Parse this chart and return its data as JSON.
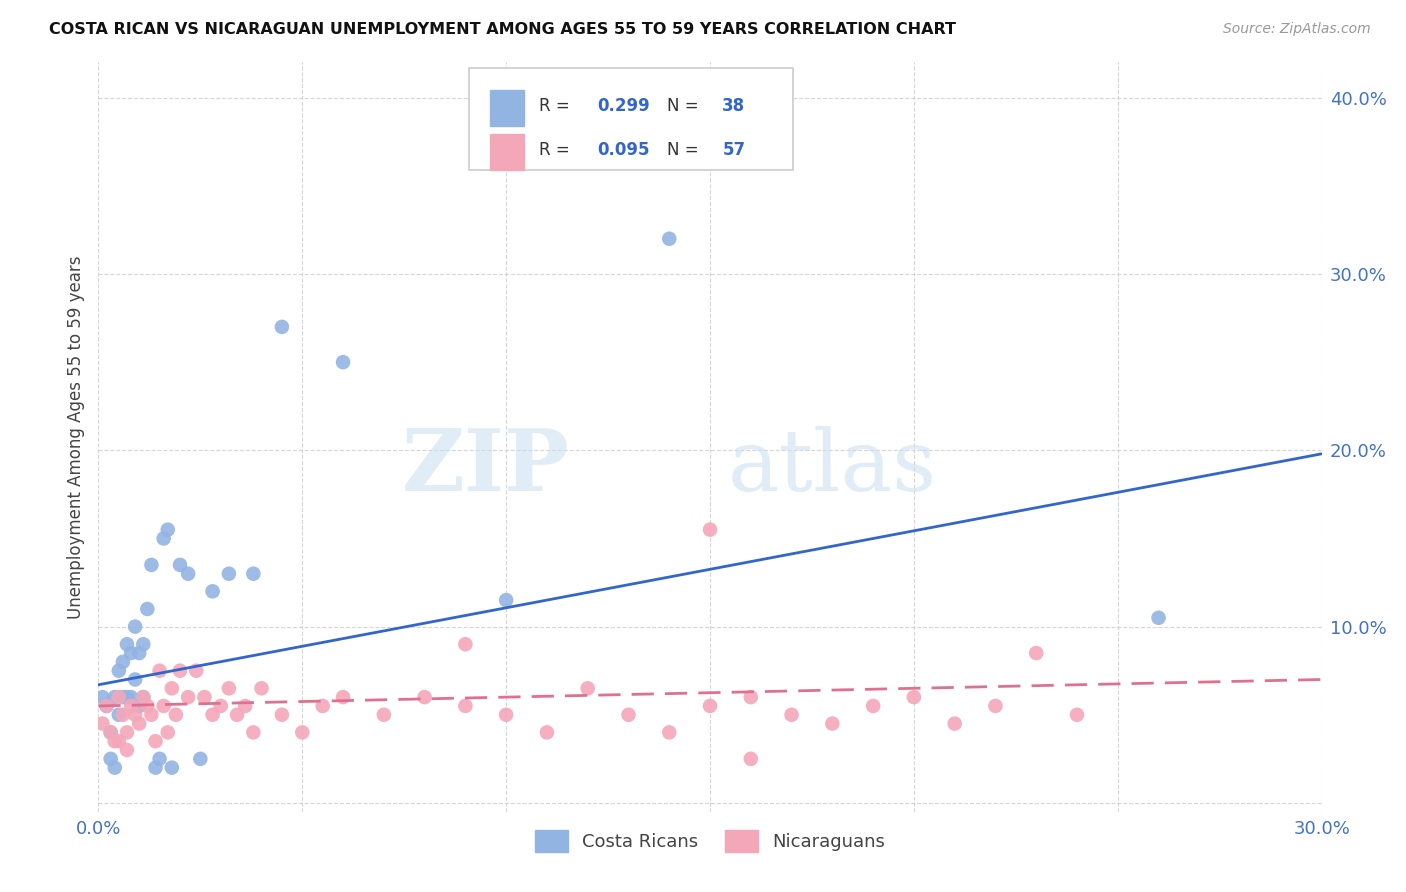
{
  "title": "COSTA RICAN VS NICARAGUAN UNEMPLOYMENT AMONG AGES 55 TO 59 YEARS CORRELATION CHART",
  "source": "Source: ZipAtlas.com",
  "ylabel": "Unemployment Among Ages 55 to 59 years",
  "xlim": [
    0.0,
    0.3
  ],
  "ylim": [
    -0.005,
    0.42
  ],
  "xtick_labels": [
    "0.0%",
    "",
    "",
    "",
    "",
    "",
    "30.0%"
  ],
  "ytick_labels": [
    "",
    "10.0%",
    "20.0%",
    "30.0%",
    "40.0%"
  ],
  "watermark_zip": "ZIP",
  "watermark_atlas": "atlas",
  "costa_rican_color": "#92b4e3",
  "nicaraguan_color": "#f4a7b9",
  "regression_blue": "#3366cc",
  "regression_pink": "#e07090",
  "regression_blue_x0": 0.0,
  "regression_blue_y0": 0.067,
  "regression_blue_x1": 0.3,
  "regression_blue_y1": 0.198,
  "regression_pink_x0": 0.0,
  "regression_pink_y0": 0.055,
  "regression_pink_x1": 0.3,
  "regression_pink_y1": 0.07,
  "costa_rican_x": [
    0.001,
    0.002,
    0.003,
    0.003,
    0.004,
    0.004,
    0.005,
    0.005,
    0.006,
    0.006,
    0.007,
    0.007,
    0.008,
    0.008,
    0.009,
    0.009,
    0.01,
    0.01,
    0.011,
    0.011,
    0.012,
    0.013,
    0.014,
    0.015,
    0.016,
    0.017,
    0.018,
    0.02,
    0.022,
    0.025,
    0.028,
    0.032,
    0.038,
    0.045,
    0.06,
    0.1,
    0.14,
    0.26
  ],
  "costa_rican_y": [
    0.06,
    0.055,
    0.04,
    0.025,
    0.06,
    0.02,
    0.075,
    0.05,
    0.08,
    0.06,
    0.09,
    0.06,
    0.085,
    0.06,
    0.1,
    0.07,
    0.085,
    0.055,
    0.09,
    0.06,
    0.11,
    0.135,
    0.02,
    0.025,
    0.15,
    0.155,
    0.02,
    0.135,
    0.13,
    0.025,
    0.12,
    0.13,
    0.13,
    0.27,
    0.25,
    0.115,
    0.32,
    0.105
  ],
  "nicaraguan_x": [
    0.001,
    0.002,
    0.003,
    0.004,
    0.005,
    0.005,
    0.006,
    0.007,
    0.007,
    0.008,
    0.009,
    0.01,
    0.011,
    0.012,
    0.013,
    0.014,
    0.015,
    0.016,
    0.017,
    0.018,
    0.019,
    0.02,
    0.022,
    0.024,
    0.026,
    0.028,
    0.03,
    0.032,
    0.034,
    0.036,
    0.038,
    0.04,
    0.045,
    0.05,
    0.055,
    0.06,
    0.07,
    0.08,
    0.09,
    0.1,
    0.11,
    0.12,
    0.13,
    0.14,
    0.15,
    0.16,
    0.17,
    0.18,
    0.19,
    0.2,
    0.21,
    0.22,
    0.23,
    0.24,
    0.15,
    0.16,
    0.09
  ],
  "nicaraguan_y": [
    0.045,
    0.055,
    0.04,
    0.035,
    0.06,
    0.035,
    0.05,
    0.04,
    0.03,
    0.055,
    0.05,
    0.045,
    0.06,
    0.055,
    0.05,
    0.035,
    0.075,
    0.055,
    0.04,
    0.065,
    0.05,
    0.075,
    0.06,
    0.075,
    0.06,
    0.05,
    0.055,
    0.065,
    0.05,
    0.055,
    0.04,
    0.065,
    0.05,
    0.04,
    0.055,
    0.06,
    0.05,
    0.06,
    0.055,
    0.05,
    0.04,
    0.065,
    0.05,
    0.04,
    0.055,
    0.06,
    0.05,
    0.045,
    0.055,
    0.06,
    0.045,
    0.055,
    0.085,
    0.05,
    0.155,
    0.025,
    0.09
  ],
  "background_color": "#ffffff",
  "grid_color": "#cccccc",
  "legend_R_cr": "0.299",
  "legend_N_cr": "38",
  "legend_R_ni": "0.095",
  "legend_N_ni": "57"
}
